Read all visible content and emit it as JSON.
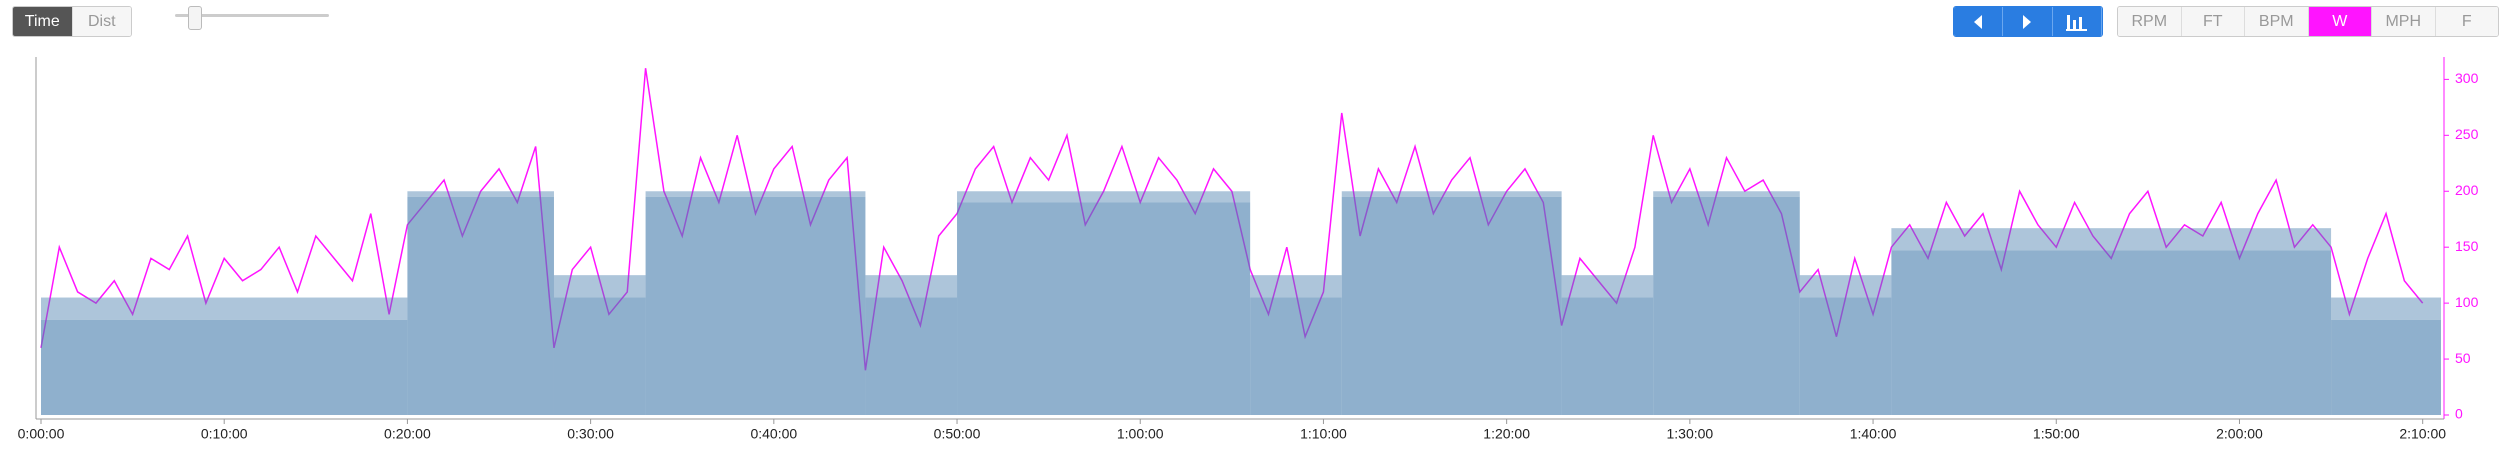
{
  "toolbar": {
    "modes": [
      "Time",
      "Dist"
    ],
    "units": [
      "RPM",
      "FT",
      "BPM",
      "W",
      "MPH",
      "F"
    ],
    "active_unit": "W"
  },
  "chart_data": {
    "type": "line",
    "xlim": [
      0,
      131
    ],
    "ylim": [
      0,
      320
    ],
    "xticks": [
      {
        "value": 0,
        "label": "0:00:00"
      },
      {
        "value": 10,
        "label": "0:10:00"
      },
      {
        "value": 20,
        "label": "0:20:00"
      },
      {
        "value": 30,
        "label": "0:30:00"
      },
      {
        "value": 40,
        "label": "0:40:00"
      },
      {
        "value": 50,
        "label": "0:50:00"
      },
      {
        "value": 60,
        "label": "1:00:00"
      },
      {
        "value": 70,
        "label": "1:10:00"
      },
      {
        "value": 80,
        "label": "1:20:00"
      },
      {
        "value": 90,
        "label": "1:30:00"
      },
      {
        "value": 100,
        "label": "1:40:00"
      },
      {
        "value": 110,
        "label": "1:50:00"
      },
      {
        "value": 120,
        "label": "2:00:00"
      },
      {
        "value": 130,
        "label": "2:10:00"
      }
    ],
    "yticks": [
      0,
      50,
      100,
      150,
      200,
      250,
      300
    ],
    "targets": [
      {
        "start": 0,
        "end": 20,
        "low": 85,
        "high": 105
      },
      {
        "start": 20,
        "end": 28,
        "low": 195,
        "high": 200
      },
      {
        "start": 28,
        "end": 33,
        "low": 105,
        "high": 125
      },
      {
        "start": 33,
        "end": 45,
        "low": 195,
        "high": 200
      },
      {
        "start": 45,
        "end": 50,
        "low": 105,
        "high": 125
      },
      {
        "start": 50,
        "end": 66,
        "low": 190,
        "high": 200
      },
      {
        "start": 66,
        "end": 71,
        "low": 105,
        "high": 125
      },
      {
        "start": 71,
        "end": 83,
        "low": 195,
        "high": 200
      },
      {
        "start": 83,
        "end": 88,
        "low": 105,
        "high": 125
      },
      {
        "start": 88,
        "end": 96,
        "low": 195,
        "high": 200
      },
      {
        "start": 96,
        "end": 101,
        "low": 105,
        "high": 125
      },
      {
        "start": 101,
        "end": 125,
        "low": 147,
        "high": 167
      },
      {
        "start": 125,
        "end": 131,
        "low": 85,
        "high": 105
      }
    ],
    "target_color": "#4a7fae",
    "series": [
      {
        "color": "#ff14ff",
        "x": [
          0,
          1,
          2,
          3,
          4,
          5,
          6,
          7,
          8,
          9,
          10,
          11,
          12,
          13,
          14,
          15,
          16,
          17,
          18,
          19,
          20,
          21,
          22,
          23,
          24,
          25,
          26,
          27,
          28,
          29,
          30,
          31,
          32,
          33,
          34,
          35,
          36,
          37,
          38,
          39,
          40,
          41,
          42,
          43,
          44,
          45,
          46,
          47,
          48,
          49,
          50,
          51,
          52,
          53,
          54,
          55,
          56,
          57,
          58,
          59,
          60,
          61,
          62,
          63,
          64,
          65,
          66,
          67,
          68,
          69,
          70,
          71,
          72,
          73,
          74,
          75,
          76,
          77,
          78,
          79,
          80,
          81,
          82,
          83,
          84,
          85,
          86,
          87,
          88,
          89,
          90,
          91,
          92,
          93,
          94,
          95,
          96,
          97,
          98,
          99,
          100,
          101,
          102,
          103,
          104,
          105,
          106,
          107,
          108,
          109,
          110,
          111,
          112,
          113,
          114,
          115,
          116,
          117,
          118,
          119,
          120,
          121,
          122,
          123,
          124,
          125,
          126,
          127,
          128,
          129,
          130
        ],
        "values": [
          60,
          150,
          110,
          100,
          120,
          90,
          140,
          130,
          160,
          100,
          140,
          120,
          130,
          150,
          110,
          160,
          140,
          120,
          180,
          90,
          170,
          190,
          210,
          160,
          200,
          220,
          190,
          240,
          60,
          130,
          150,
          90,
          110,
          310,
          200,
          160,
          230,
          190,
          250,
          180,
          220,
          240,
          170,
          210,
          230,
          40,
          150,
          120,
          80,
          160,
          180,
          220,
          240,
          190,
          230,
          210,
          250,
          170,
          200,
          240,
          190,
          230,
          210,
          180,
          220,
          200,
          130,
          90,
          150,
          70,
          110,
          270,
          160,
          220,
          190,
          240,
          180,
          210,
          230,
          170,
          200,
          220,
          190,
          80,
          140,
          120,
          100,
          150,
          250,
          190,
          220,
          170,
          230,
          200,
          210,
          180,
          110,
          130,
          70,
          140,
          90,
          150,
          170,
          140,
          190,
          160,
          180,
          130,
          200,
          170,
          150,
          190,
          160,
          140,
          180,
          200,
          150,
          170,
          160,
          190,
          140,
          180,
          210,
          150,
          170,
          150,
          90,
          140,
          180,
          120,
          100
        ]
      }
    ]
  }
}
